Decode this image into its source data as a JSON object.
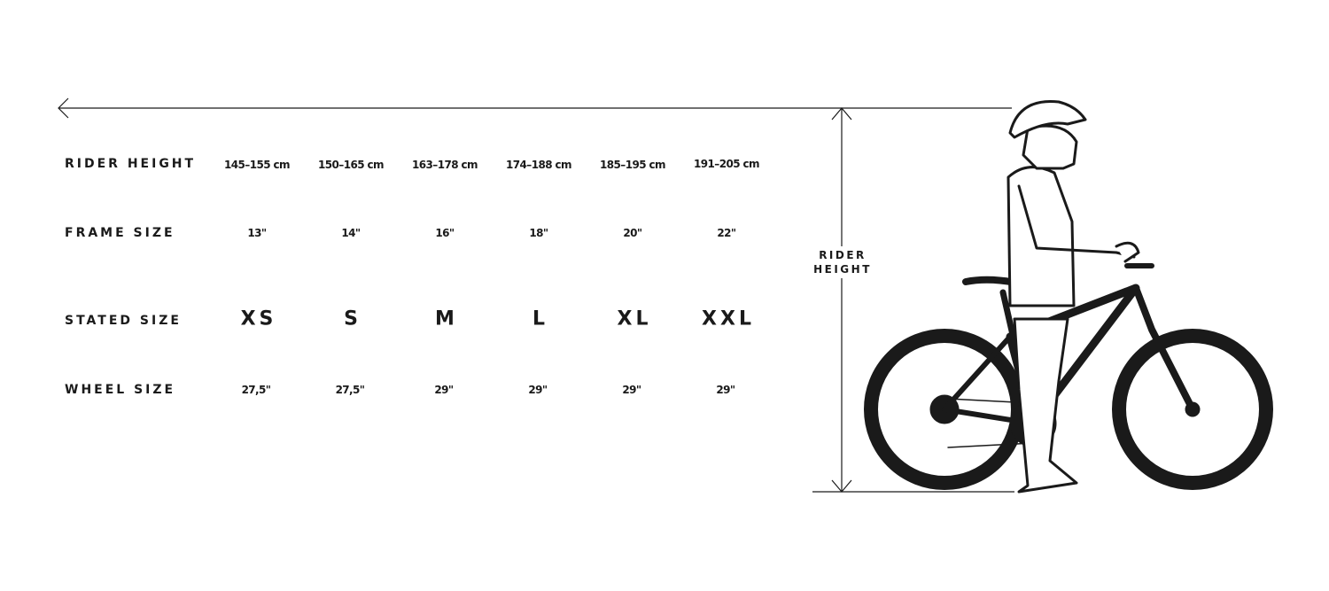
{
  "rows": [
    {
      "label": "RIDER HEIGHT",
      "values": [
        "145–155 cm",
        "150–165 cm",
        "163–178 cm",
        "174–188 cm",
        "185–195 cm",
        "191–205 cm"
      ]
    },
    {
      "label": "FRAME SIZE",
      "values": [
        "13\"",
        "14\"",
        "16\"",
        "18\"",
        "20\"",
        "22\""
      ]
    },
    {
      "label": "STATED SIZE",
      "values": [
        "XS",
        "S",
        "M",
        "L",
        "XL",
        "XXL"
      ]
    },
    {
      "label": "WHEEL SIZE",
      "values": [
        "27,5\"",
        "27,5\"",
        "29\"",
        "29\"",
        "29\"",
        "29\""
      ]
    }
  ],
  "dimension_label": {
    "line1": "RIDER",
    "line2": "HEIGHT"
  },
  "colors": {
    "ink": "#1a1a1a",
    "background": "#ffffff"
  }
}
